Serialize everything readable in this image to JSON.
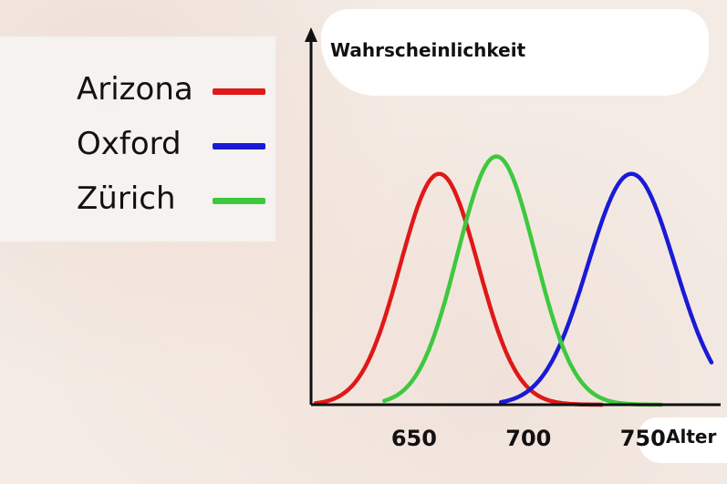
{
  "chart_data": {
    "type": "line",
    "ylabel": "Wahrscheinlichkeit",
    "xlabel": "Alter",
    "xlim": [
      605,
      780
    ],
    "ylim": [
      0,
      1.05
    ],
    "xticks": [
      650,
      700,
      750
    ],
    "grid": false,
    "legend_position": "left",
    "series": [
      {
        "name": "Arizona",
        "color": "#e01818",
        "mean": 661,
        "sd": 17,
        "peak": 0.93,
        "range": [
          607,
          732
        ]
      },
      {
        "name": "Oxford",
        "color": "#1a1ad6",
        "mean": 745,
        "sd": 19,
        "peak": 0.93,
        "range": [
          688,
          780
        ]
      },
      {
        "name": "Zürich",
        "color": "#3ec83e",
        "mean": 686,
        "sd": 17,
        "peak": 1.0,
        "range": [
          637,
          758
        ]
      }
    ]
  },
  "legend": [
    {
      "label": "Arizona",
      "color": "#e01818"
    },
    {
      "label": "Oxford",
      "color": "#1a1ad6"
    },
    {
      "label": "Zürich",
      "color": "#3ec83e"
    }
  ]
}
